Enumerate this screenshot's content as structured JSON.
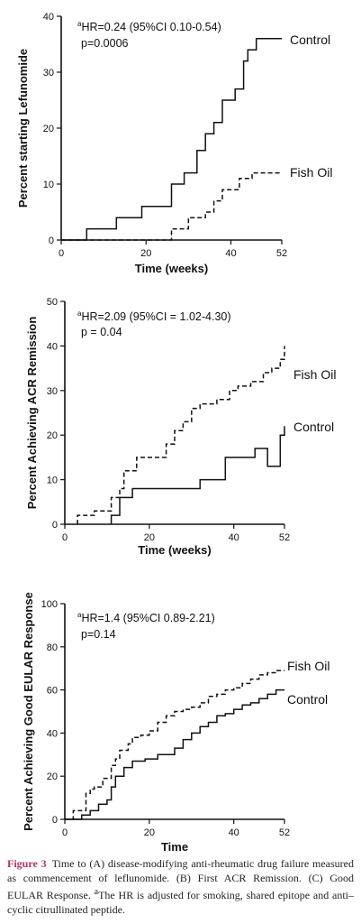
{
  "chart_data": [
    {
      "type": "line",
      "ylabel": "Percent starting Lefunomide",
      "xlabel": "Time (weeks)",
      "xlim": [
        0,
        52
      ],
      "ylim": [
        0,
        40
      ],
      "x_ticks": [
        "0",
        "20",
        "40",
        "52"
      ],
      "y_ticks": [
        "0",
        "10",
        "20",
        "30",
        "40"
      ],
      "annotation_hr_sup": "a",
      "annotation_hr": "HR=0.24 (95%CI 0.10-0.54)",
      "annotation_p": "p=0.0006",
      "series": [
        {
          "name": "Control",
          "dash": "solid",
          "x": [
            0,
            6,
            6,
            13,
            13,
            19,
            19,
            26,
            26,
            29,
            29,
            32,
            32,
            34,
            34,
            36,
            36,
            38,
            38,
            41,
            41,
            43,
            43,
            44,
            44,
            46,
            46,
            52
          ],
          "y": [
            0,
            0,
            2,
            2,
            4,
            4,
            6,
            6,
            10,
            10,
            12,
            12,
            16,
            16,
            19,
            19,
            21,
            21,
            25,
            25,
            27,
            27,
            32,
            32,
            34,
            34,
            36,
            36
          ]
        },
        {
          "name": "Fish Oil",
          "dash": "dashed",
          "x": [
            0,
            26,
            26,
            30,
            30,
            34,
            34,
            36,
            36,
            38,
            38,
            42,
            42,
            45,
            45,
            52
          ],
          "y": [
            0,
            0,
            2,
            2,
            4,
            4,
            5,
            5,
            7,
            7,
            9,
            9,
            11,
            11,
            12,
            12
          ]
        }
      ]
    },
    {
      "type": "line",
      "ylabel": "Percent Achieving ACR Remission",
      "xlabel": "Time (weeks)",
      "xlim": [
        0,
        52
      ],
      "ylim": [
        0,
        50
      ],
      "x_ticks": [
        "0",
        "20",
        "40",
        "52"
      ],
      "y_ticks": [
        "0",
        "10",
        "20",
        "30",
        "40",
        "50"
      ],
      "annotation_hr_sup": "a",
      "annotation_hr": "HR=2.09 (95%CI = 1.02-4.30)",
      "annotation_p": "p = 0.04",
      "series": [
        {
          "name": "Fish Oil",
          "dash": "dashed",
          "x": [
            3,
            3,
            7,
            7,
            11,
            11,
            13,
            13,
            14,
            14,
            17,
            17,
            24,
            24,
            26,
            26,
            28,
            28,
            30,
            30,
            32,
            32,
            36,
            36,
            39,
            39,
            41,
            41,
            44,
            44,
            47,
            47,
            49,
            49,
            51,
            51,
            52,
            52
          ],
          "y": [
            0,
            2,
            2,
            3,
            3,
            6,
            6,
            8,
            8,
            12,
            12,
            15,
            15,
            18,
            18,
            21,
            21,
            23,
            23,
            26,
            26,
            27,
            27,
            28,
            28,
            30,
            30,
            31,
            31,
            32,
            32,
            34,
            34,
            35,
            35,
            37,
            37,
            40
          ]
        },
        {
          "name": "Control",
          "dash": "solid",
          "x": [
            11,
            11,
            13,
            13,
            16,
            16,
            32,
            32,
            38,
            38,
            45,
            45,
            48,
            48,
            51,
            51,
            52,
            52
          ],
          "y": [
            0,
            2,
            2,
            6,
            6,
            8,
            8,
            10,
            10,
            15,
            15,
            17,
            17,
            13,
            13,
            20,
            20,
            22
          ]
        }
      ]
    },
    {
      "type": "line",
      "ylabel": "Percent Achieving Good EULAR Response",
      "xlabel": "Time",
      "xlim": [
        0,
        52
      ],
      "ylim": [
        0,
        100
      ],
      "x_ticks": [
        "0",
        "20",
        "40",
        "52"
      ],
      "y_ticks": [
        "0",
        "20",
        "40",
        "60",
        "80",
        "100"
      ],
      "annotation_hr_sup": "a",
      "annotation_hr": "HR=1.4 (95%CI 0.89-2.21)",
      "annotation_p": "p=0.14",
      "series": [
        {
          "name": "Fish Oil",
          "dash": "dashed",
          "x": [
            0,
            2,
            2,
            5,
            5,
            6,
            6,
            7,
            7,
            9,
            9,
            11,
            11,
            12,
            12,
            13,
            13,
            15,
            15,
            16,
            16,
            18,
            18,
            20,
            20,
            22,
            22,
            24,
            24,
            26,
            26,
            28,
            28,
            30,
            30,
            32,
            32,
            34,
            34,
            36,
            36,
            38,
            38,
            40,
            40,
            42,
            42,
            44,
            44,
            46,
            46,
            48,
            48,
            50,
            50,
            52
          ],
          "y": [
            0,
            0,
            4,
            4,
            12,
            12,
            14,
            14,
            15,
            15,
            19,
            19,
            25,
            25,
            28,
            28,
            32,
            32,
            35,
            35,
            38,
            38,
            39,
            39,
            41,
            41,
            45,
            45,
            48,
            48,
            50,
            50,
            51,
            51,
            52,
            52,
            54,
            54,
            57,
            57,
            58,
            58,
            60,
            60,
            61,
            61,
            63,
            63,
            65,
            65,
            67,
            67,
            68,
            68,
            69,
            69
          ]
        },
        {
          "name": "Control",
          "dash": "solid",
          "x": [
            0,
            4,
            4,
            6,
            6,
            8,
            8,
            10,
            10,
            11,
            11,
            12,
            12,
            14,
            14,
            16,
            16,
            19,
            19,
            22,
            22,
            26,
            26,
            28,
            28,
            30,
            30,
            32,
            32,
            34,
            34,
            36,
            36,
            38,
            38,
            40,
            40,
            42,
            42,
            44,
            44,
            46,
            46,
            48,
            48,
            50,
            50,
            52
          ],
          "y": [
            0,
            0,
            2,
            2,
            4,
            4,
            7,
            7,
            9,
            9,
            15,
            15,
            20,
            20,
            24,
            24,
            27,
            27,
            28,
            28,
            30,
            30,
            33,
            33,
            37,
            37,
            40,
            40,
            43,
            43,
            45,
            45,
            48,
            48,
            49,
            49,
            51,
            51,
            53,
            53,
            54,
            54,
            56,
            56,
            58,
            58,
            60,
            60
          ]
        }
      ]
    }
  ],
  "caption": {
    "label": "Figure 3",
    "text": "Time to (A) disease-modifying anti-rheumatic drug failure measured as commencement of leflunomide. (B) First ACR Remission. (C) Good EULAR Response. ",
    "footnote_sup": "a",
    "footnote_text": "The HR is adjusted for smoking, shared epitope and anti–cyclic citrullinated peptide."
  }
}
